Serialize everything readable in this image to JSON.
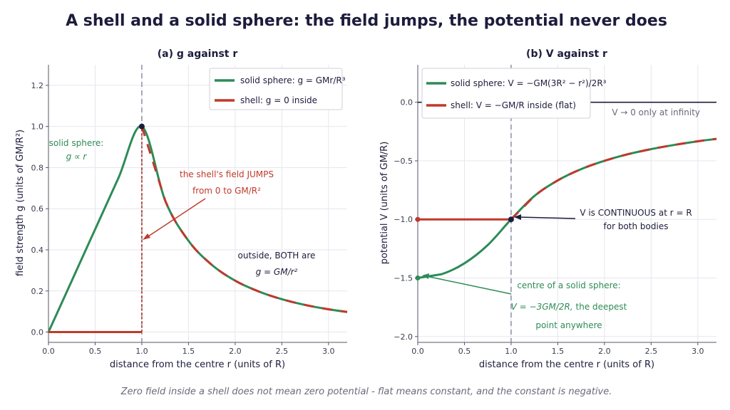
{
  "figure": {
    "title": "A shell and a solid sphere: the field jumps, the potential never does",
    "caption": "Zero field inside a shell does not mean zero potential - flat means constant, and the constant is negative."
  },
  "colors": {
    "solid": "#2e8b57",
    "shell": "#c0392b",
    "dark": "#1c1c3c",
    "grid": "#e6e6ee",
    "dash": "#8a8fa3",
    "muted": "#6a6a7a"
  },
  "chart_data": [
    {
      "type": "line",
      "title": "(a) g against r",
      "xlabel": "distance from the centre   r   (units of R)",
      "ylabel": "field strength   g   (units of GM/R²)",
      "xlim": [
        0,
        3.2
      ],
      "ylim": [
        -0.05,
        1.3
      ],
      "xticks": [
        0.0,
        0.5,
        1.0,
        1.5,
        2.0,
        2.5,
        3.0
      ],
      "xtick_labels": [
        "0.0",
        "0.5",
        "1.0",
        "1.5",
        "2.0",
        "2.5",
        "3.0"
      ],
      "yticks": [
        0.0,
        0.2,
        0.4,
        0.6,
        0.8,
        1.0,
        1.2
      ],
      "ytick_labels": [
        "0.0",
        "0.2",
        "0.4",
        "0.6",
        "0.8",
        "1.0",
        "1.2"
      ],
      "grid": true,
      "legend_position": "top-right",
      "series": [
        {
          "name": "solid sphere:  g = GMr/R³",
          "role": "solid",
          "x": [
            0.0,
            0.25,
            0.5,
            0.75,
            1.0,
            1.25,
            1.5,
            1.75,
            2.0,
            2.25,
            2.5,
            2.75,
            3.0,
            3.2
          ],
          "y": [
            0.0,
            0.25,
            0.5,
            0.75,
            1.0,
            0.64,
            0.444,
            0.327,
            0.25,
            0.198,
            0.16,
            0.132,
            0.111,
            0.098
          ]
        },
        {
          "name": "shell:  g = 0 inside",
          "role": "shell",
          "x": [
            0.0,
            1.0,
            1.0,
            1.25,
            1.5,
            1.75,
            2.0,
            2.25,
            2.5,
            2.75,
            3.0,
            3.2
          ],
          "y": [
            0.0,
            0.0,
            1.0,
            0.64,
            0.444,
            0.327,
            0.25,
            0.198,
            0.16,
            0.132,
            0.111,
            0.098
          ]
        }
      ],
      "vline_x": 1.0,
      "marker": {
        "x": 1.0,
        "y": 1.0
      },
      "annotations": {
        "solid_label_1": "solid sphere:",
        "solid_label_2": "g ∝ r",
        "jump_1": "the shell's field JUMPS",
        "jump_2": "from 0 to GM/R²",
        "outside_1": "outside, BOTH are",
        "outside_2": "g = GM/r²"
      }
    },
    {
      "type": "line",
      "title": "(b) V against r",
      "xlabel": "distance from the centre   r   (units of R)",
      "ylabel": "potential   V   (units of GM/R)",
      "xlim": [
        0,
        3.2
      ],
      "ylim": [
        -2.05,
        0.32
      ],
      "xticks": [
        0.0,
        0.5,
        1.0,
        1.5,
        2.0,
        2.5,
        3.0
      ],
      "xtick_labels": [
        "0.0",
        "0.5",
        "1.0",
        "1.5",
        "2.0",
        "2.5",
        "3.0"
      ],
      "yticks": [
        0.0,
        -0.5,
        -1.0,
        -1.5,
        -2.0
      ],
      "ytick_labels": [
        "0.0",
        "−0.5",
        "−1.0",
        "−1.5",
        "−2.0"
      ],
      "grid": true,
      "legend_position": "top-left",
      "series": [
        {
          "name": "solid sphere:  V = −GM(3R² − r²)/2R³",
          "role": "solid",
          "x": [
            0.0,
            0.25,
            0.5,
            0.75,
            1.0,
            1.25,
            1.5,
            1.75,
            2.0,
            2.25,
            2.5,
            2.75,
            3.0,
            3.2
          ],
          "y": [
            -1.5,
            -1.469,
            -1.375,
            -1.219,
            -1.0,
            -0.8,
            -0.667,
            -0.571,
            -0.5,
            -0.444,
            -0.4,
            -0.364,
            -0.333,
            -0.3125
          ]
        },
        {
          "name": "shell:  V = −GM/R  inside (flat)",
          "role": "shell",
          "x": [
            0.0,
            1.0,
            1.25,
            1.5,
            1.75,
            2.0,
            2.25,
            2.5,
            2.75,
            3.0,
            3.2
          ],
          "y": [
            -1.0,
            -1.0,
            -0.8,
            -0.667,
            -0.571,
            -0.5,
            -0.444,
            -0.4,
            -0.364,
            -0.333,
            -0.3125
          ]
        }
      ],
      "hline_y": 0.0,
      "vline_x": 1.0,
      "marker": {
        "x": 1.0,
        "y": -1.0
      },
      "annotations": {
        "infinity": "V → 0 only at infinity",
        "continuous_1": "V is CONTINUOUS at r = R",
        "continuous_2": "for both bodies",
        "centre_1": "centre of a solid sphere:",
        "centre_2_formula": "V = −3GM/2R,",
        "centre_2_tail": " the deepest",
        "centre_3": "point anywhere"
      }
    }
  ]
}
